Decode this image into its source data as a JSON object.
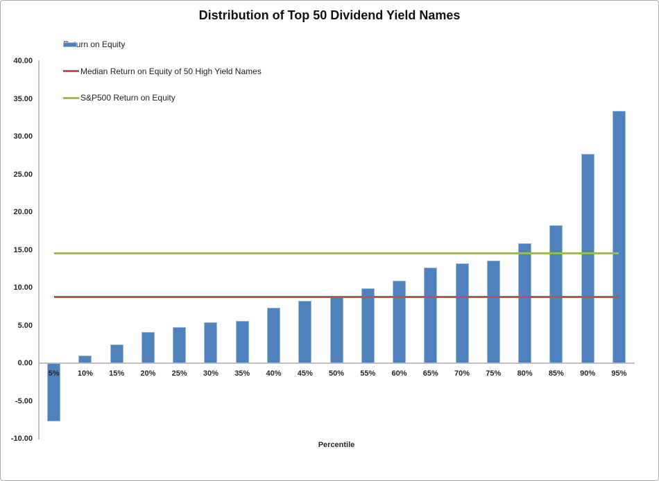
{
  "chart_data": {
    "type": "bar",
    "title": "Distribution of Top 50 Dividend Yield Names",
    "xlabel": "Percentile",
    "ylabel": "",
    "categories": [
      "5%",
      "10%",
      "15%",
      "20%",
      "25%",
      "30%",
      "35%",
      "40%",
      "45%",
      "50%",
      "55%",
      "60%",
      "65%",
      "70%",
      "75%",
      "80%",
      "85%",
      "90%",
      "95%"
    ],
    "series": [
      {
        "name": "Return on Equity",
        "type": "bar",
        "color": "#4F81BD",
        "values": [
          -7.7,
          1.0,
          2.5,
          4.1,
          4.8,
          5.4,
          5.6,
          7.3,
          8.3,
          8.9,
          9.9,
          10.9,
          12.7,
          13.2,
          13.6,
          15.9,
          18.3,
          27.7,
          33.4
        ]
      },
      {
        "name": "Median Return on Equity of 50 High Yield Names",
        "type": "line",
        "color": "#C0504D",
        "value": 8.8
      },
      {
        "name": "S&P500 Return on Equity",
        "type": "line",
        "color": "#9BBB59",
        "value": 14.5
      }
    ],
    "ylim": [
      -10,
      40
    ],
    "ytick_step": 5,
    "ytick_labels": [
      "40.00",
      "35.00",
      "30.00",
      "25.00",
      "20.00",
      "15.00",
      "10.00",
      "5.00",
      "0.00",
      "-5.00",
      "-10.00"
    ],
    "grid": false,
    "legend_position": "top-left",
    "axis_color": "#BFBFBF",
    "text_color": "#262626"
  }
}
